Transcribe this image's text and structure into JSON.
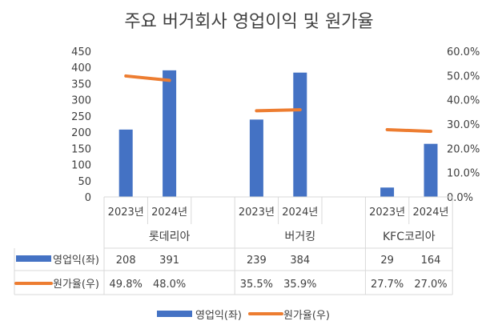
{
  "chart_data": {
    "type": "bar+line",
    "title": "주요 버거회사 영업이익 및 원가율",
    "categories": [
      "2023년",
      "2024년",
      "",
      "2023년",
      "2024년",
      "",
      "2023년",
      "2024년"
    ],
    "groups": [
      {
        "name": "롯데리아",
        "span": [
          0,
          2
        ]
      },
      {
        "name": "버거킹",
        "span": [
          3,
          5
        ]
      },
      {
        "name": "KFC코리아",
        "span": [
          6,
          7
        ]
      }
    ],
    "series": [
      {
        "name": "영업익(좌)",
        "type": "bar",
        "axis": "left",
        "color": "#4472C4",
        "values": [
          208,
          391,
          null,
          239,
          384,
          null,
          29,
          164
        ],
        "labels": [
          "208",
          "391",
          "",
          "239",
          "384",
          "",
          "29",
          "164"
        ]
      },
      {
        "name": "원가율(우)",
        "type": "line",
        "axis": "right",
        "color": "#ED7D31",
        "values": [
          49.8,
          48.0,
          null,
          35.5,
          35.9,
          null,
          27.7,
          27.0
        ],
        "labels": [
          "49.8%",
          "48.0%",
          "",
          "35.5%",
          "35.9%",
          "",
          "27.7%",
          "27.0%"
        ]
      }
    ],
    "y_left": {
      "min": 0,
      "max": 450,
      "step": 50,
      "ticks": [
        "0",
        "50",
        "100",
        "150",
        "200",
        "250",
        "300",
        "350",
        "400",
        "450"
      ]
    },
    "y_right": {
      "min": 0,
      "max": 60,
      "step": 10,
      "ticks": [
        "0.0%",
        "10.0%",
        "20.0%",
        "30.0%",
        "40.0%",
        "50.0%",
        "60.0%"
      ]
    },
    "legend": "bottom",
    "grid": false
  }
}
